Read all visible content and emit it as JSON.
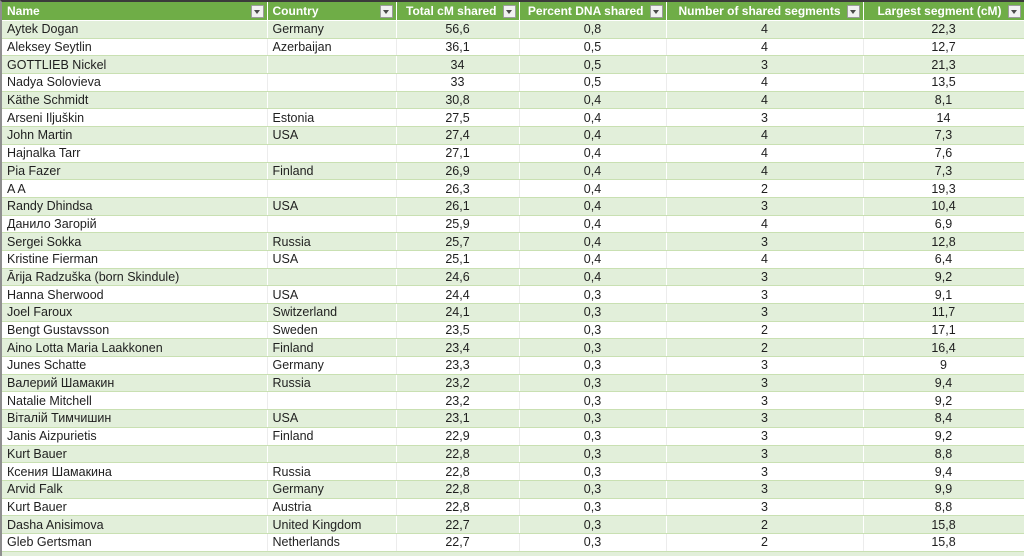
{
  "table": {
    "columns": [
      {
        "label": "Name",
        "filter_icon": "filter-dropdown-icon"
      },
      {
        "label": "Country",
        "filter_icon": "filter-dropdown-icon"
      },
      {
        "label": "Total cM shared",
        "filter_icon": "filter-dropdown-icon"
      },
      {
        "label": "Percent DNA shared",
        "filter_icon": "filter-dropdown-icon"
      },
      {
        "label": "Number of shared segments",
        "filter_icon": "filter-dropdown-icon"
      },
      {
        "label": "Largest segment (cM)",
        "filter_icon": "filter-dropdown-icon"
      }
    ],
    "rows": [
      {
        "name": "Aytek Dogan",
        "country": "Germany",
        "total_cm": "56,6",
        "percent_dna": "0,8",
        "shared_segments": "4",
        "largest_segment": "22,3"
      },
      {
        "name": "Aleksey Seytlin",
        "country": "Azerbaijan",
        "total_cm": "36,1",
        "percent_dna": "0,5",
        "shared_segments": "4",
        "largest_segment": "12,7"
      },
      {
        "name": "GOTTLIEB Nickel",
        "country": "",
        "total_cm": "34",
        "percent_dna": "0,5",
        "shared_segments": "3",
        "largest_segment": "21,3"
      },
      {
        "name": "Nadya Solovieva",
        "country": "",
        "total_cm": "33",
        "percent_dna": "0,5",
        "shared_segments": "4",
        "largest_segment": "13,5"
      },
      {
        "name": "Käthe Schmidt",
        "country": "",
        "total_cm": "30,8",
        "percent_dna": "0,4",
        "shared_segments": "4",
        "largest_segment": "8,1"
      },
      {
        "name": "Arseni Iljuškin",
        "country": "Estonia",
        "total_cm": "27,5",
        "percent_dna": "0,4",
        "shared_segments": "3",
        "largest_segment": "14"
      },
      {
        "name": "John Martin",
        "country": "USA",
        "total_cm": "27,4",
        "percent_dna": "0,4",
        "shared_segments": "4",
        "largest_segment": "7,3"
      },
      {
        "name": "Hajnalka Tarr",
        "country": "",
        "total_cm": "27,1",
        "percent_dna": "0,4",
        "shared_segments": "4",
        "largest_segment": "7,6"
      },
      {
        "name": "Pia Fazer",
        "country": "Finland",
        "total_cm": "26,9",
        "percent_dna": "0,4",
        "shared_segments": "4",
        "largest_segment": "7,3"
      },
      {
        "name": "A A",
        "country": "",
        "total_cm": "26,3",
        "percent_dna": "0,4",
        "shared_segments": "2",
        "largest_segment": "19,3"
      },
      {
        "name": "Randy Dhindsa",
        "country": "USA",
        "total_cm": "26,1",
        "percent_dna": "0,4",
        "shared_segments": "3",
        "largest_segment": "10,4"
      },
      {
        "name": "Данило Загорій",
        "country": "",
        "total_cm": "25,9",
        "percent_dna": "0,4",
        "shared_segments": "4",
        "largest_segment": "6,9"
      },
      {
        "name": "Sergei Sokka",
        "country": "Russia",
        "total_cm": "25,7",
        "percent_dna": "0,4",
        "shared_segments": "3",
        "largest_segment": "12,8"
      },
      {
        "name": "Kristine Fierman",
        "country": "USA",
        "total_cm": "25,1",
        "percent_dna": "0,4",
        "shared_segments": "4",
        "largest_segment": "6,4"
      },
      {
        "name": "Ārija Radzuška (born Skindule)",
        "country": "",
        "total_cm": "24,6",
        "percent_dna": "0,4",
        "shared_segments": "3",
        "largest_segment": "9,2"
      },
      {
        "name": "Hanna Sherwood",
        "country": "USA",
        "total_cm": "24,4",
        "percent_dna": "0,3",
        "shared_segments": "3",
        "largest_segment": "9,1"
      },
      {
        "name": "Joel Faroux",
        "country": "Switzerland",
        "total_cm": "24,1",
        "percent_dna": "0,3",
        "shared_segments": "3",
        "largest_segment": "11,7"
      },
      {
        "name": "Bengt Gustavsson",
        "country": "Sweden",
        "total_cm": "23,5",
        "percent_dna": "0,3",
        "shared_segments": "2",
        "largest_segment": "17,1"
      },
      {
        "name": "Aino Lotta Maria Laakkonen",
        "country": "Finland",
        "total_cm": "23,4",
        "percent_dna": "0,3",
        "shared_segments": "2",
        "largest_segment": "16,4"
      },
      {
        "name": "Junes Schatte",
        "country": "Germany",
        "total_cm": "23,3",
        "percent_dna": "0,3",
        "shared_segments": "3",
        "largest_segment": "9"
      },
      {
        "name": "Валерий Шамакин",
        "country": "Russia",
        "total_cm": "23,2",
        "percent_dna": "0,3",
        "shared_segments": "3",
        "largest_segment": "9,4"
      },
      {
        "name": "Natalie Mitchell",
        "country": "",
        "total_cm": "23,2",
        "percent_dna": "0,3",
        "shared_segments": "3",
        "largest_segment": "9,2"
      },
      {
        "name": "Віталій Тимчишин",
        "country": "USA",
        "total_cm": "23,1",
        "percent_dna": "0,3",
        "shared_segments": "3",
        "largest_segment": "8,4"
      },
      {
        "name": "Janis Aizpurietis",
        "country": "Finland",
        "total_cm": "22,9",
        "percent_dna": "0,3",
        "shared_segments": "3",
        "largest_segment": "9,2"
      },
      {
        "name": "Kurt Bauer",
        "country": "",
        "total_cm": "22,8",
        "percent_dna": "0,3",
        "shared_segments": "3",
        "largest_segment": "8,8"
      },
      {
        "name": "Ксения Шамакина",
        "country": "Russia",
        "total_cm": "22,8",
        "percent_dna": "0,3",
        "shared_segments": "3",
        "largest_segment": "9,4"
      },
      {
        "name": "Arvid Falk",
        "country": "Germany",
        "total_cm": "22,8",
        "percent_dna": "0,3",
        "shared_segments": "3",
        "largest_segment": "9,9"
      },
      {
        "name": "Kurt Bauer",
        "country": "Austria",
        "total_cm": "22,8",
        "percent_dna": "0,3",
        "shared_segments": "3",
        "largest_segment": "8,8"
      },
      {
        "name": "Dasha Anisimova",
        "country": "United Kingdom",
        "total_cm": "22,7",
        "percent_dna": "0,3",
        "shared_segments": "2",
        "largest_segment": "15,8"
      },
      {
        "name": "Gleb Gertsman",
        "country": "Netherlands",
        "total_cm": "22,7",
        "percent_dna": "0,3",
        "shared_segments": "2",
        "largest_segment": "15,8"
      }
    ]
  },
  "colors": {
    "header_bg": "#6FAD47",
    "header_text": "#FFFFFF",
    "stripe_bg": "#E2EFDA",
    "row_bg": "#FFFFFF",
    "grid_line": "#C9E0B2",
    "top_edge": "#3B3B3B",
    "left_edge": "#8F8F8F"
  }
}
